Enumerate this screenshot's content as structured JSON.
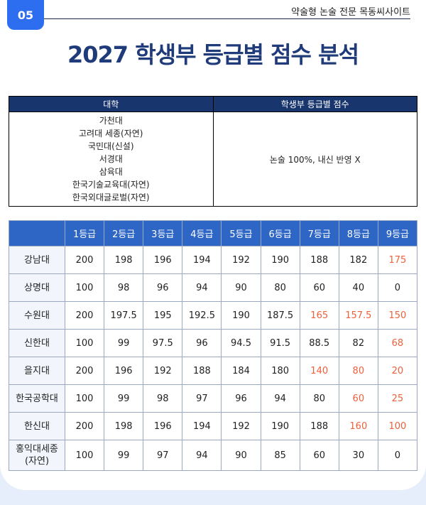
{
  "header": {
    "section_number": "05",
    "site_label": "약술형 논술 전문 목동씨사이트"
  },
  "title": "2027 학생부 등급별 점수 분석",
  "summary_table": {
    "headers": [
      "대학",
      "학생부 등급별 점수"
    ],
    "universities": [
      "가천대",
      "고려대 세종(자연)",
      "국민대(신설)",
      "서경대",
      "삼육대",
      "한국기술교육대(자연)",
      "한국외대글로벌(자연)"
    ],
    "note": "논술 100%, 내신 반영 X"
  },
  "grade_table": {
    "headers": [
      "",
      "1등급",
      "2등급",
      "3등급",
      "4등급",
      "5등급",
      "6등급",
      "7등급",
      "8등급",
      "9등급"
    ],
    "rows": [
      {
        "name": "강남대",
        "values": [
          "200",
          "198",
          "196",
          "194",
          "192",
          "190",
          "188",
          "182",
          "175"
        ],
        "highlight": [
          8
        ]
      },
      {
        "name": "상명대",
        "values": [
          "100",
          "98",
          "96",
          "94",
          "90",
          "80",
          "60",
          "40",
          "0"
        ],
        "highlight": []
      },
      {
        "name": "수원대",
        "values": [
          "200",
          "197.5",
          "195",
          "192.5",
          "190",
          "187.5",
          "165",
          "157.5",
          "150"
        ],
        "highlight": [
          6,
          7,
          8
        ]
      },
      {
        "name": "신한대",
        "values": [
          "100",
          "99",
          "97.5",
          "96",
          "94.5",
          "91.5",
          "88.5",
          "82",
          "68"
        ],
        "highlight": [
          8
        ]
      },
      {
        "name": "을지대",
        "values": [
          "200",
          "196",
          "192",
          "188",
          "184",
          "180",
          "140",
          "80",
          "20"
        ],
        "highlight": [
          6,
          7,
          8
        ]
      },
      {
        "name": "한국공학대",
        "values": [
          "100",
          "99",
          "98",
          "97",
          "96",
          "94",
          "80",
          "60",
          "25"
        ],
        "highlight": [
          7,
          8
        ]
      },
      {
        "name": "한신대",
        "values": [
          "200",
          "198",
          "196",
          "194",
          "192",
          "190",
          "188",
          "160",
          "100"
        ],
        "highlight": [
          7,
          8
        ]
      },
      {
        "name": "홍익대세종\n(자연)",
        "values": [
          "100",
          "99",
          "97",
          "94",
          "90",
          "85",
          "60",
          "30",
          "0"
        ],
        "highlight": []
      }
    ]
  },
  "colors": {
    "accent": "#2d6ef0",
    "title": "#1f3b7a",
    "header_dark": "#18356e",
    "header_blue": "#2d66c4",
    "highlight": "#f0603a"
  }
}
